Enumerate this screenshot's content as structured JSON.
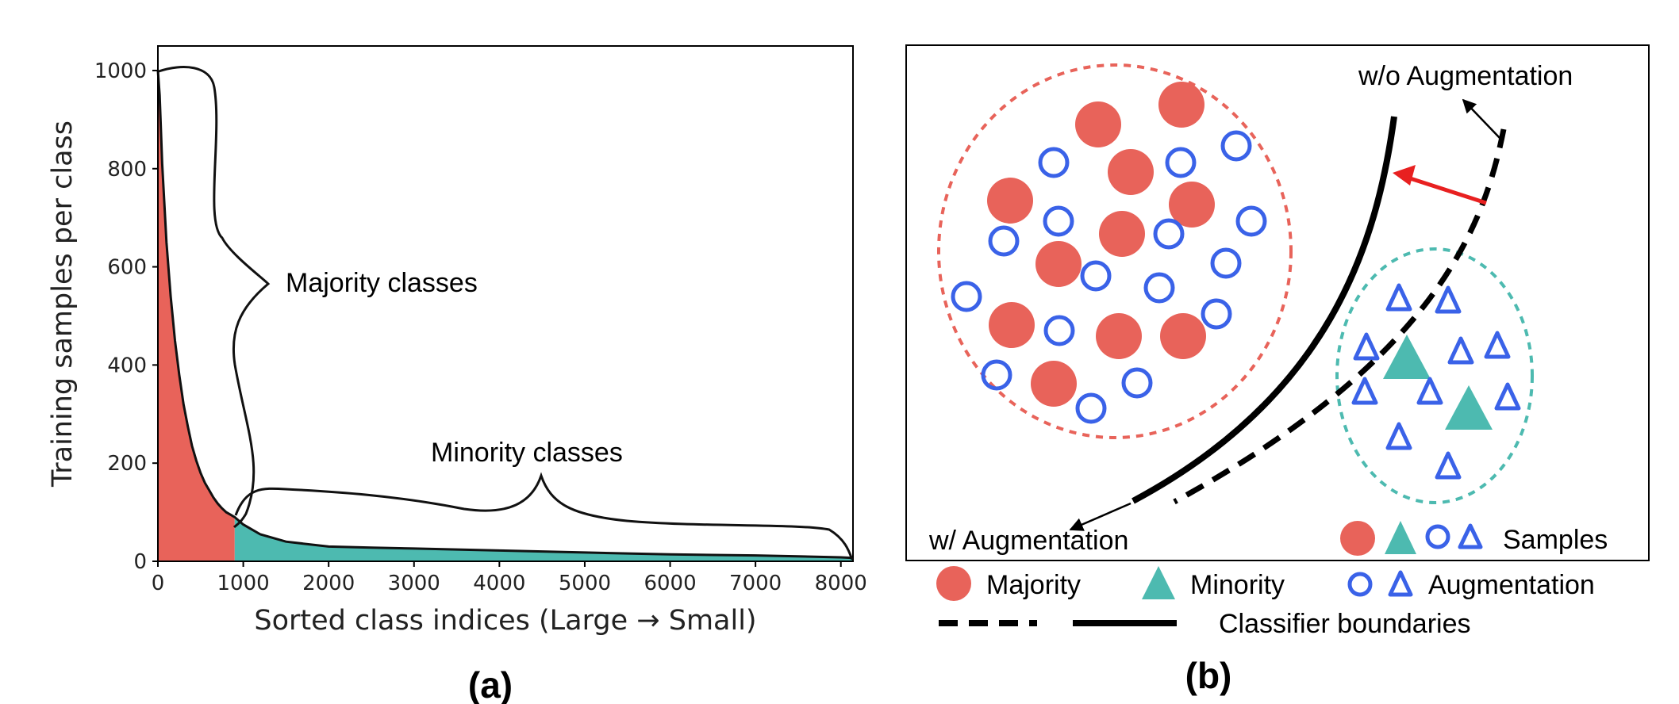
{
  "panel_a": {
    "label": "(a)",
    "annotations": {
      "majority": "Majority classes",
      "minority": "Minority classes"
    }
  },
  "panel_b": {
    "label": "(b)",
    "annotations": {
      "wo": "w/o Augmentation",
      "w": "w/ Augmentation",
      "samples": "Samples"
    },
    "legend": {
      "majority": "Majority",
      "minority": "Minority",
      "augmentation": "Augmentation",
      "boundaries": "Classifier boundaries"
    }
  },
  "colors": {
    "majority": "#e8635a",
    "minority": "#4dbab0",
    "augmentation": "#3a62e8",
    "arrow": "#e82020"
  },
  "chart_data": [
    {
      "type": "area",
      "xlabel": "Sorted class indices (Large → Small)",
      "ylabel": "Training samples per class",
      "xlim": [
        0,
        8142
      ],
      "ylim": [
        0,
        1050
      ],
      "xticks": [
        0,
        1000,
        2000,
        3000,
        4000,
        5000,
        6000,
        7000,
        8000
      ],
      "yticks": [
        0,
        200,
        400,
        600,
        800,
        1000
      ],
      "split_index": 900,
      "grid": false,
      "series": [
        {
          "x": [
            0,
            20,
            50,
            100,
            150,
            200,
            250,
            300,
            350,
            400,
            450,
            500,
            550,
            600,
            650,
            700,
            750,
            800,
            850,
            900,
            1000,
            1200,
            1500,
            2000,
            2500,
            3000,
            3500,
            4000,
            4500,
            5000,
            5500,
            6000,
            6500,
            7000,
            7500,
            8000,
            8142
          ],
          "values": [
            1000,
            950,
            810,
            650,
            540,
            450,
            380,
            320,
            275,
            235,
            205,
            180,
            160,
            145,
            130,
            118,
            108,
            100,
            95,
            90,
            75,
            55,
            40,
            30,
            28,
            26,
            24,
            22,
            20,
            18,
            16,
            14,
            13,
            12,
            10,
            8,
            7
          ]
        }
      ]
    }
  ]
}
